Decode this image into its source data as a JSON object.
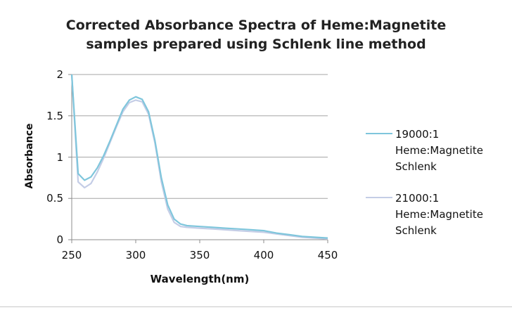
{
  "chart_data": {
    "type": "line",
    "title_lines": [
      "Corrected Absorbance Spectra of Heme:Magnetite",
      "samples prepared using Schlenk line method"
    ],
    "xlabel": "Wavelength(nm)",
    "ylabel": "Absorbance",
    "xlim": [
      250,
      450
    ],
    "ylim": [
      0,
      2
    ],
    "xticks": [
      "250",
      "300",
      "350",
      "400",
      "450"
    ],
    "yticks": [
      "0",
      "0.5",
      "1",
      "1.5",
      "2"
    ],
    "grid": "horizontal",
    "legend_position": "right",
    "series": [
      {
        "name_lines": [
          "19000:1",
          "Heme:Magnetite",
          "Schlenk"
        ],
        "color": "#7fc6dc",
        "x": [
          250,
          255,
          260,
          265,
          270,
          275,
          280,
          285,
          290,
          295,
          300,
          305,
          310,
          315,
          320,
          325,
          330,
          335,
          340,
          350,
          360,
          370,
          380,
          390,
          400,
          410,
          420,
          430,
          440,
          450
        ],
        "y": [
          2.0,
          0.8,
          0.72,
          0.76,
          0.87,
          1.02,
          1.2,
          1.39,
          1.58,
          1.69,
          1.73,
          1.7,
          1.55,
          1.2,
          0.75,
          0.42,
          0.25,
          0.19,
          0.17,
          0.16,
          0.15,
          0.14,
          0.13,
          0.12,
          0.11,
          0.08,
          0.06,
          0.04,
          0.03,
          0.02
        ]
      },
      {
        "name_lines": [
          "21000:1",
          "Heme:Magnetite",
          "Schlenk"
        ],
        "color": "#c4cde6",
        "x": [
          250,
          255,
          260,
          265,
          270,
          275,
          280,
          285,
          290,
          295,
          300,
          305,
          310,
          315,
          320,
          325,
          330,
          335,
          340,
          350,
          360,
          370,
          380,
          390,
          400,
          410,
          420,
          430,
          440,
          450
        ],
        "y": [
          2.0,
          0.7,
          0.63,
          0.68,
          0.82,
          0.99,
          1.18,
          1.37,
          1.55,
          1.66,
          1.69,
          1.67,
          1.52,
          1.17,
          0.7,
          0.37,
          0.21,
          0.16,
          0.15,
          0.14,
          0.13,
          0.12,
          0.11,
          0.1,
          0.09,
          0.07,
          0.05,
          0.03,
          0.02,
          0.01
        ]
      }
    ]
  }
}
